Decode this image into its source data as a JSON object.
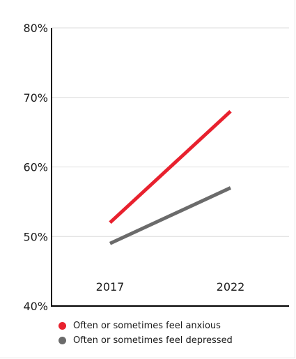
{
  "chart_data": {
    "type": "line",
    "title": "",
    "xlabel": "",
    "ylabel": "",
    "x": [
      "2017",
      "2022"
    ],
    "ylim": [
      40,
      80
    ],
    "y_ticks": [
      40,
      50,
      60,
      70,
      80
    ],
    "y_tick_labels": [
      "40%",
      "50%",
      "60%",
      "70%",
      "80%"
    ],
    "grid": true,
    "legend_position": "bottom-left",
    "series": [
      {
        "name": "Often or sometimes feel anxious",
        "values": [
          52,
          68
        ],
        "color": "#e8212e"
      },
      {
        "name": "Often or sometimes feel depressed",
        "values": [
          49,
          57
        ],
        "color": "#6b6b6b"
      }
    ]
  }
}
